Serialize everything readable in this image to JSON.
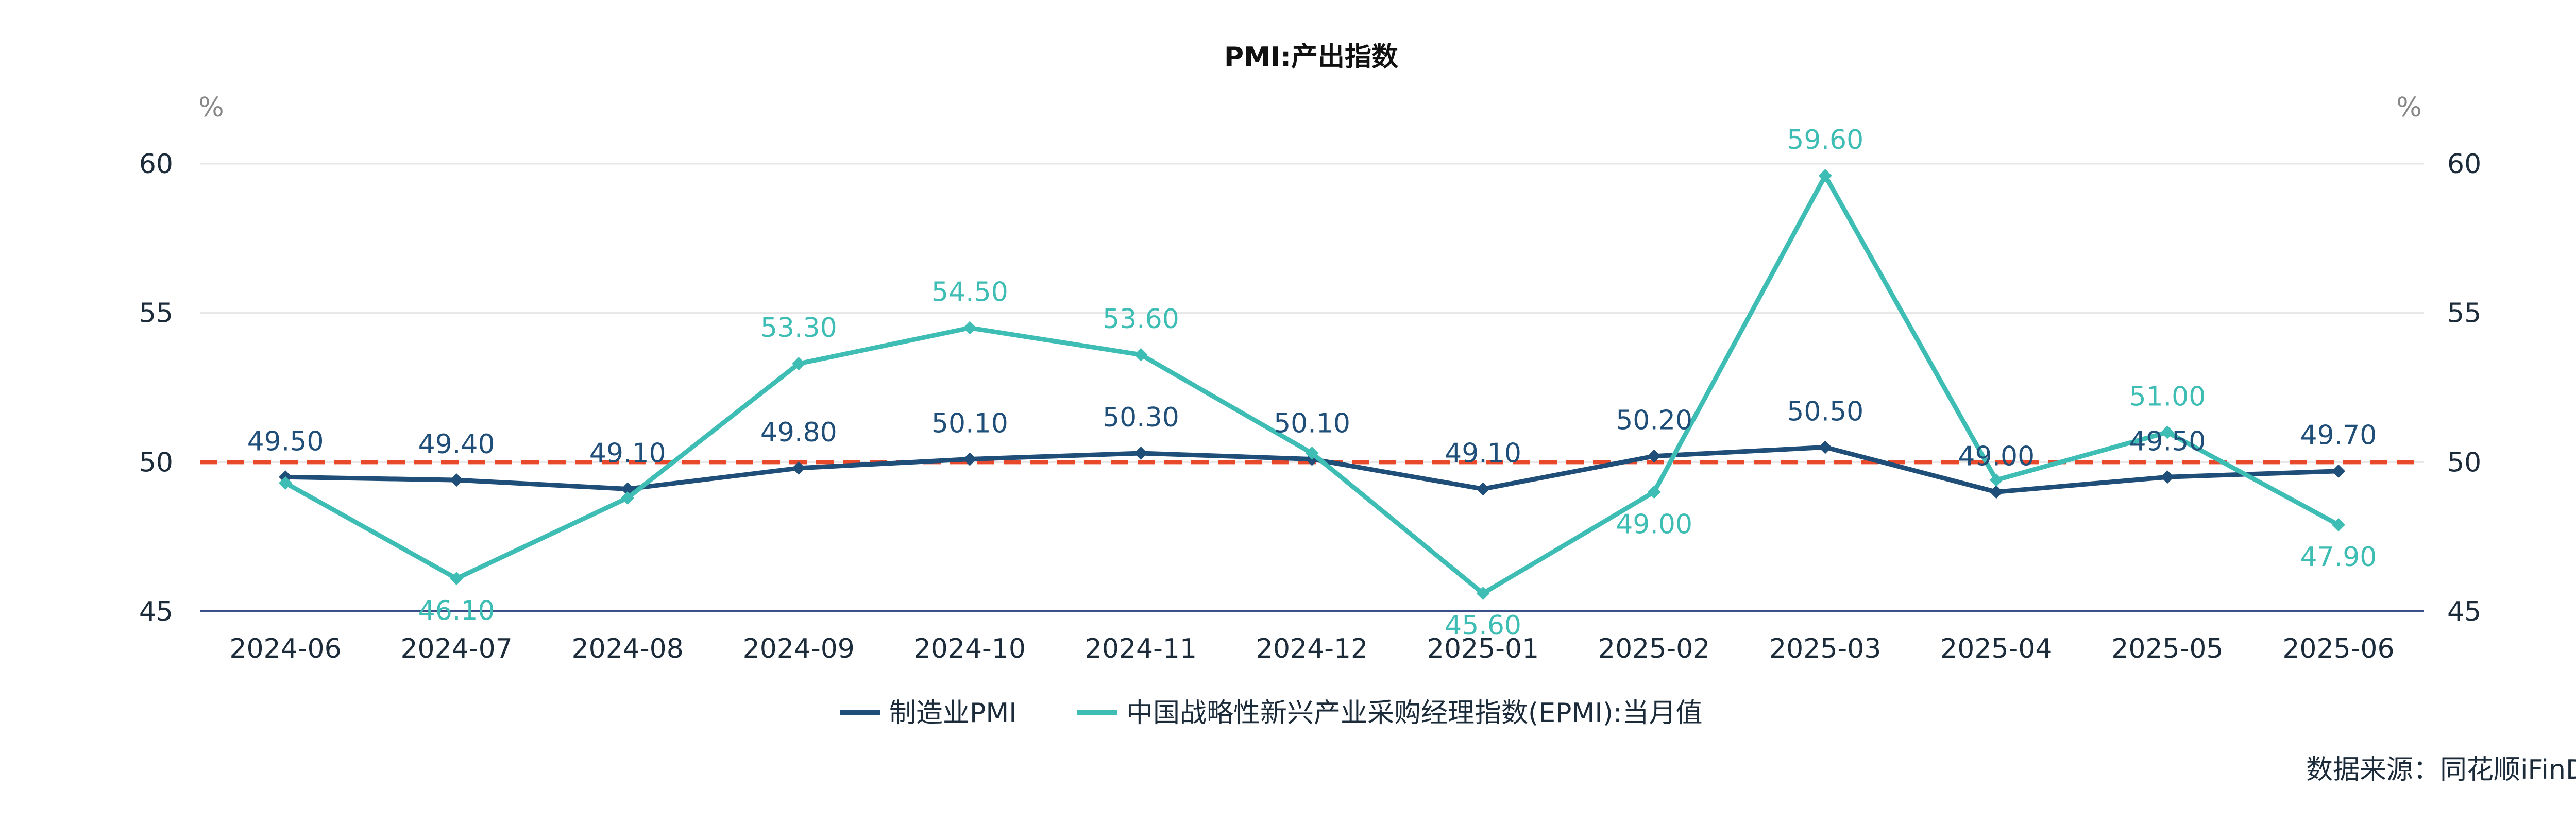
{
  "chart_data": {
    "type": "line",
    "title": "PMI:产出指数",
    "y_unit_left": "%",
    "y_unit_right": "%",
    "ylim": [
      45,
      60
    ],
    "yticks": [
      45,
      50,
      55,
      60
    ],
    "categories": [
      "2024-06",
      "2024-07",
      "2024-08",
      "2024-09",
      "2024-10",
      "2024-11",
      "2024-12",
      "2025-01",
      "2025-02",
      "2025-03",
      "2025-04",
      "2025-05",
      "2025-06"
    ],
    "series": [
      {
        "name": "制造业PMI",
        "color": "#1f4e79",
        "values": [
          49.5,
          49.4,
          49.1,
          49.8,
          50.1,
          50.3,
          50.1,
          49.1,
          50.2,
          50.5,
          49.0,
          49.5,
          49.7
        ],
        "labels": [
          "49.50",
          "49.40",
          "49.10",
          "49.80",
          "50.10",
          "50.30",
          "50.10",
          "49.10",
          "50.20",
          "50.50",
          "49.00",
          "49.50",
          "49.70"
        ]
      },
      {
        "name": "中国战略性新兴产业采购经理指数(EPMI):当月值",
        "color": "#3dbdb3",
        "values": [
          49.3,
          46.1,
          48.8,
          53.3,
          54.5,
          53.6,
          50.3,
          45.6,
          49.0,
          59.6,
          49.4,
          51.0,
          47.9
        ],
        "labels": [
          "",
          "46.10",
          "",
          "53.30",
          "54.50",
          "53.60",
          "",
          "45.60",
          "49.00",
          "59.60",
          "",
          "51.00",
          "47.90"
        ]
      }
    ],
    "reference_line": {
      "value": 50,
      "color": "#e8492a",
      "style": "dashed"
    },
    "grid": true,
    "legend_position": "bottom"
  },
  "source_text": "数据来源：同花顺iFinD"
}
